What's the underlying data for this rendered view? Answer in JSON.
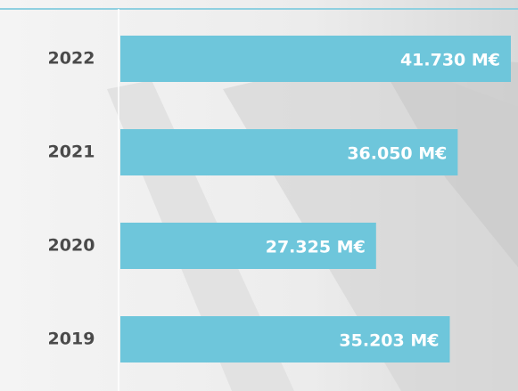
{
  "chart_data": {
    "type": "bar",
    "orientation": "horizontal",
    "categories": [
      "2022",
      "2021",
      "2020",
      "2019"
    ],
    "values": [
      41730,
      36050,
      27325,
      35203
    ],
    "value_labels": [
      "41.730 M€",
      "36.050 M€",
      "27.325 M€",
      "35.203 M€"
    ],
    "color": "#6ec6db"
  }
}
